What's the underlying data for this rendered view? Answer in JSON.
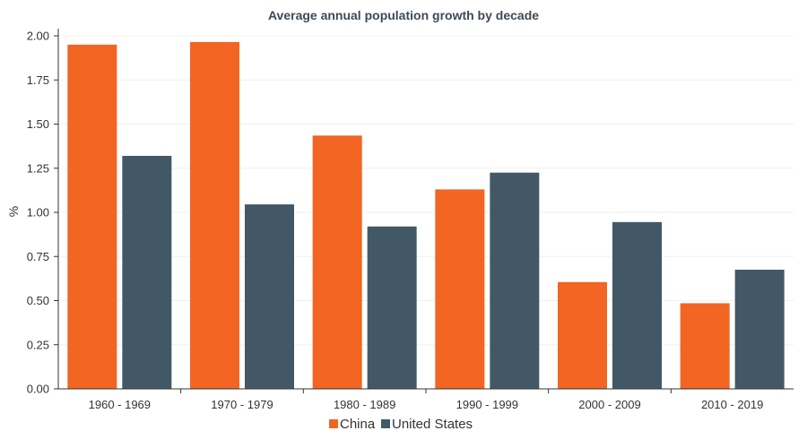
{
  "chart_data": {
    "type": "bar",
    "title": "Average annual population growth by decade",
    "xlabel": "",
    "ylabel": "%",
    "ylim": [
      0,
      2.0
    ],
    "yticks": [
      "0.00",
      "0.25",
      "0.50",
      "0.75",
      "1.00",
      "1.25",
      "1.50",
      "1.75",
      "2.00"
    ],
    "categories": [
      "1960 - 1969",
      "1970 - 1979",
      "1980 - 1989",
      "1990 - 1999",
      "2000 - 2009",
      "2010 - 2019"
    ],
    "series": [
      {
        "name": "China",
        "color": "#f26522",
        "values": [
          1.95,
          1.965,
          1.435,
          1.13,
          0.605,
          0.485
        ]
      },
      {
        "name": "United States",
        "color": "#435866",
        "values": [
          1.32,
          1.045,
          0.92,
          1.225,
          0.945,
          0.675
        ]
      }
    ],
    "grid": true,
    "legend": "bottom-center"
  }
}
